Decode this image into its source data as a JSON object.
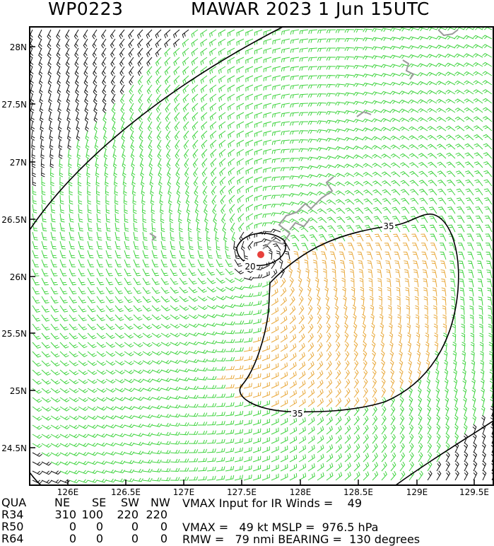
{
  "header": {
    "storm_id": "WP0223",
    "title": "MAWAR 2023   1 Jun 15UTC"
  },
  "map": {
    "lat_labels": [
      "28N",
      "27.5N",
      "27N",
      "26.5N",
      "26N",
      "25.5N",
      "25N",
      "24.5N"
    ],
    "lon_labels": [
      "126E",
      "126.5E",
      "127E",
      "127.5E",
      "128E",
      "128.5E",
      "129E",
      "129.5E"
    ],
    "contour_labels": [
      "35",
      "20",
      "35"
    ],
    "colors": {
      "frame": "#000000",
      "wind_low": "#3fd33f",
      "wind_gale": "#e8a83a",
      "wind_weak": "#111111",
      "center": "#e8413c",
      "coast": "#9b9b9b"
    }
  },
  "table": {
    "headers": [
      "QUA",
      "NE",
      "SE",
      "SW",
      "NW"
    ],
    "rows": [
      {
        "label": "R34",
        "values": [
          "310",
          "100",
          "220",
          "220"
        ]
      },
      {
        "label": "R50",
        "values": [
          "0",
          "0",
          "0",
          "0"
        ]
      },
      {
        "label": "R64",
        "values": [
          "0",
          "0",
          "0",
          "0"
        ]
      }
    ]
  },
  "info": {
    "line1": "VMAX Input for IR Winds =    49",
    "line2": "VMAX =   49 kt MSLP =  976.5 hPa",
    "line3": "RMW =   79 nmi BEARING =  130 degrees"
  }
}
